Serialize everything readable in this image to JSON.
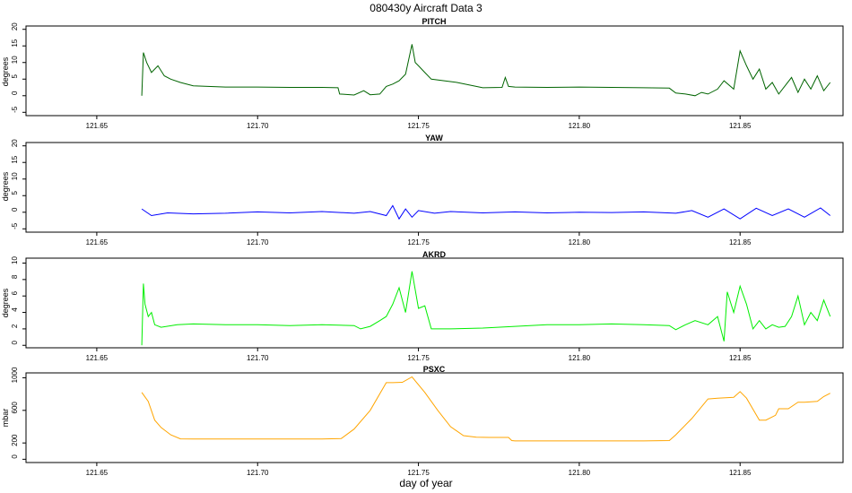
{
  "title": "080430y   Aircraft Data 3",
  "xlabel": "day of year",
  "chart_data": [
    {
      "type": "line",
      "title": "PITCH",
      "ylabel": "degrees",
      "color": "#006400",
      "xlim": [
        121.628,
        121.882
      ],
      "ylim": [
        -6,
        21
      ],
      "xticks": [
        "121.65",
        "121.70",
        "121.75",
        "121.80",
        "121.85"
      ],
      "yticks": [
        "-5",
        "0",
        "5",
        "10",
        "15",
        "20"
      ],
      "x": [
        121.664,
        121.6645,
        121.6655,
        121.667,
        121.669,
        121.671,
        121.673,
        121.676,
        121.68,
        121.69,
        121.7,
        121.71,
        121.72,
        121.725,
        121.7255,
        121.73,
        121.733,
        121.735,
        121.738,
        121.74,
        121.742,
        121.744,
        121.746,
        121.748,
        121.749,
        121.75,
        121.752,
        121.754,
        121.758,
        121.762,
        121.77,
        121.776,
        121.777,
        121.778,
        121.78,
        121.79,
        121.8,
        121.81,
        121.82,
        121.828,
        121.83,
        121.833,
        121.836,
        121.838,
        121.84,
        121.843,
        121.845,
        121.848,
        121.85,
        121.852,
        121.854,
        121.856,
        121.858,
        121.86,
        121.862,
        121.864,
        121.866,
        121.868,
        121.87,
        121.872,
        121.874,
        121.876,
        121.878
      ],
      "y": [
        0,
        13,
        10,
        7,
        9,
        6,
        5,
        4,
        3,
        2.6,
        2.6,
        2.5,
        2.5,
        2.4,
        0.5,
        0.2,
        1.5,
        0.3,
        0.5,
        2.8,
        3.5,
        4.5,
        6.5,
        15.5,
        10,
        9,
        7,
        5,
        4.5,
        4,
        2.4,
        2.5,
        5.5,
        2.8,
        2.6,
        2.5,
        2.6,
        2.5,
        2.4,
        2.3,
        0.8,
        0.5,
        0,
        1,
        0.5,
        2,
        4.5,
        2,
        13.5,
        9,
        5,
        8,
        2,
        4,
        0.5,
        3,
        5.5,
        1,
        5,
        2,
        6,
        1.5,
        4
      ]
    },
    {
      "type": "line",
      "title": "YAW",
      "ylabel": "degrees",
      "color": "#0000ff",
      "xlim": [
        121.628,
        121.882
      ],
      "ylim": [
        -6,
        21
      ],
      "xticks": [
        "121.65",
        "121.70",
        "121.75",
        "121.80",
        "121.85"
      ],
      "yticks": [
        "-5",
        "0",
        "5",
        "10",
        "15",
        "20"
      ],
      "x": [
        121.664,
        121.667,
        121.672,
        121.68,
        121.69,
        121.7,
        121.71,
        121.72,
        121.73,
        121.735,
        121.74,
        121.742,
        121.744,
        121.746,
        121.748,
        121.75,
        121.755,
        121.76,
        121.77,
        121.78,
        121.79,
        121.8,
        121.81,
        121.82,
        121.83,
        121.835,
        121.84,
        121.845,
        121.85,
        121.855,
        121.86,
        121.865,
        121.87,
        121.875,
        121.878
      ],
      "y": [
        1,
        -1,
        -0.2,
        -0.5,
        -0.3,
        0.1,
        -0.2,
        0.2,
        -0.3,
        0.2,
        -1,
        2,
        -2,
        1,
        -1.5,
        0.5,
        -0.3,
        0.2,
        -0.2,
        0.1,
        -0.2,
        0,
        -0.1,
        0.1,
        -0.3,
        0.5,
        -1.5,
        1,
        -2,
        1.2,
        -1,
        1,
        -1.5,
        1.3,
        -1
      ]
    },
    {
      "type": "line",
      "title": "AKRD",
      "ylabel": "degrees",
      "color": "#00ee00",
      "xlim": [
        121.628,
        121.882
      ],
      "ylim": [
        -0.3,
        10.6
      ],
      "xticks": [
        "121.65",
        "121.70",
        "121.75",
        "121.80",
        "121.85"
      ],
      "yticks": [
        "0",
        "2",
        "4",
        "6",
        "8",
        "10"
      ],
      "x": [
        121.664,
        121.6645,
        121.665,
        121.666,
        121.667,
        121.668,
        121.67,
        121.675,
        121.68,
        121.69,
        121.7,
        121.71,
        121.72,
        121.73,
        121.732,
        121.735,
        121.738,
        121.74,
        121.742,
        121.744,
        121.746,
        121.748,
        121.75,
        121.752,
        121.754,
        121.76,
        121.77,
        121.78,
        121.79,
        121.8,
        121.81,
        121.82,
        121.828,
        121.83,
        121.833,
        121.836,
        121.84,
        121.843,
        121.845,
        121.846,
        121.848,
        121.85,
        121.852,
        121.854,
        121.856,
        121.858,
        121.86,
        121.862,
        121.864,
        121.866,
        121.868,
        121.87,
        121.872,
        121.874,
        121.876,
        121.878
      ],
      "y": [
        0,
        7.5,
        5,
        3.5,
        4,
        2.5,
        2.2,
        2.5,
        2.6,
        2.5,
        2.5,
        2.4,
        2.5,
        2.4,
        2,
        2.3,
        3,
        3.5,
        5,
        7,
        4,
        9,
        4.5,
        4.8,
        2,
        2,
        2.1,
        2.3,
        2.5,
        2.5,
        2.6,
        2.5,
        2.4,
        1.9,
        2.5,
        3,
        2.5,
        3.5,
        0.5,
        6.5,
        4,
        7.2,
        5,
        2,
        3,
        2,
        2.5,
        2.2,
        2.3,
        3.5,
        6,
        2.5,
        4,
        3,
        5.5,
        3.5
      ]
    },
    {
      "type": "line",
      "title": "PSXC",
      "ylabel": "mbar",
      "color": "#ffa500",
      "xlim": [
        121.628,
        121.882
      ],
      "ylim": [
        -40,
        1060
      ],
      "xticks": [
        "121.65",
        "121.70",
        "121.75",
        "121.80",
        "121.85"
      ],
      "yticks": [
        "0",
        "200",
        "600",
        "1000"
      ],
      "x": [
        121.664,
        121.666,
        121.668,
        121.67,
        121.673,
        121.676,
        121.68,
        121.7,
        121.72,
        121.726,
        121.73,
        121.735,
        121.74,
        121.742,
        121.745,
        121.748,
        121.752,
        121.756,
        121.76,
        121.764,
        121.768,
        121.772,
        121.776,
        121.778,
        121.779,
        121.78,
        121.79,
        121.8,
        121.81,
        121.82,
        121.828,
        121.83,
        121.835,
        121.84,
        121.843,
        121.848,
        121.85,
        121.852,
        121.856,
        121.858,
        121.861,
        121.862,
        121.865,
        121.868,
        121.87,
        121.874,
        121.876,
        121.878
      ],
      "y": [
        820,
        710,
        480,
        390,
        300,
        250,
        248,
        248,
        248,
        255,
        370,
        600,
        940,
        940,
        945,
        1010,
        820,
        600,
        400,
        290,
        270,
        268,
        268,
        268,
        230,
        225,
        225,
        225,
        225,
        225,
        230,
        300,
        500,
        740,
        750,
        760,
        830,
        750,
        480,
        480,
        540,
        620,
        620,
        700,
        700,
        710,
        770,
        810
      ]
    }
  ]
}
